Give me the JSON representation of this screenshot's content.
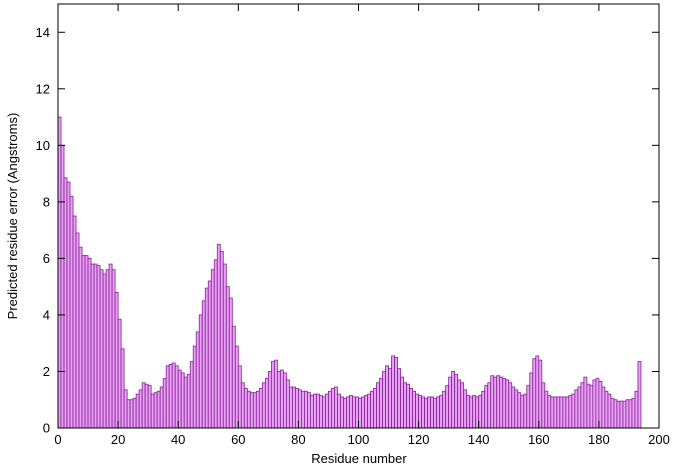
{
  "chart_data": {
    "type": "bar",
    "xlabel": "Residue number",
    "ylabel": "Predicted residue error (Angstroms)",
    "color": "#e6a3f2",
    "edge_color": "#8b1c9c",
    "xlim": [
      0,
      200
    ],
    "xticks": [
      0,
      20,
      40,
      60,
      80,
      100,
      120,
      140,
      160,
      180,
      200
    ],
    "ylim": [
      0,
      15
    ],
    "yticks": [
      0,
      2,
      4,
      6,
      8,
      10,
      12,
      14
    ],
    "grid": false,
    "x": [
      0,
      1,
      2,
      3,
      4,
      5,
      6,
      7,
      8,
      9,
      10,
      11,
      12,
      13,
      14,
      15,
      16,
      17,
      18,
      19,
      20,
      21,
      22,
      23,
      24,
      25,
      26,
      27,
      28,
      29,
      30,
      31,
      32,
      33,
      34,
      35,
      36,
      37,
      38,
      39,
      40,
      41,
      42,
      43,
      44,
      45,
      46,
      47,
      48,
      49,
      50,
      51,
      52,
      53,
      54,
      55,
      56,
      57,
      58,
      59,
      60,
      61,
      62,
      63,
      64,
      65,
      66,
      67,
      68,
      69,
      70,
      71,
      72,
      73,
      74,
      75,
      76,
      77,
      78,
      79,
      80,
      81,
      82,
      83,
      84,
      85,
      86,
      87,
      88,
      89,
      90,
      91,
      92,
      93,
      94,
      95,
      96,
      97,
      98,
      99,
      100,
      101,
      102,
      103,
      104,
      105,
      106,
      107,
      108,
      109,
      110,
      111,
      112,
      113,
      114,
      115,
      116,
      117,
      118,
      119,
      120,
      121,
      122,
      123,
      124,
      125,
      126,
      127,
      128,
      129,
      130,
      131,
      132,
      133,
      134,
      135,
      136,
      137,
      138,
      139,
      140,
      141,
      142,
      143,
      144,
      145,
      146,
      147,
      148,
      149,
      150,
      151,
      152,
      153,
      154,
      155,
      156,
      157,
      158,
      159,
      160,
      161,
      162,
      163,
      164,
      165,
      166,
      167,
      168,
      169,
      170,
      171,
      172,
      173,
      174,
      175,
      176,
      177,
      178,
      179,
      180,
      181,
      182,
      183,
      184,
      185,
      186,
      187,
      188,
      189,
      190,
      191,
      192,
      193
    ],
    "values": [
      11.0,
      10.0,
      8.85,
      8.7,
      8.2,
      7.5,
      6.9,
      6.4,
      6.1,
      6.1,
      6.0,
      5.8,
      5.8,
      5.75,
      5.6,
      5.45,
      5.6,
      5.8,
      5.6,
      4.8,
      3.85,
      2.8,
      1.35,
      1.0,
      1.0,
      1.05,
      1.2,
      1.35,
      1.6,
      1.55,
      1.5,
      1.2,
      1.25,
      1.3,
      1.45,
      1.75,
      2.2,
      2.25,
      2.3,
      2.2,
      2.05,
      1.95,
      1.8,
      1.9,
      2.35,
      2.9,
      3.4,
      4.0,
      4.5,
      4.95,
      5.2,
      5.6,
      5.95,
      6.5,
      6.25,
      5.8,
      5.0,
      4.6,
      3.6,
      2.9,
      2.2,
      1.6,
      1.4,
      1.3,
      1.25,
      1.25,
      1.3,
      1.4,
      1.6,
      1.75,
      2.0,
      2.35,
      2.4,
      2.0,
      2.05,
      1.95,
      1.7,
      1.45,
      1.45,
      1.4,
      1.35,
      1.3,
      1.3,
      1.25,
      1.15,
      1.2,
      1.2,
      1.15,
      1.1,
      1.2,
      1.3,
      1.4,
      1.45,
      1.2,
      1.1,
      1.05,
      1.1,
      1.15,
      1.1,
      1.1,
      1.05,
      1.1,
      1.15,
      1.2,
      1.3,
      1.4,
      1.6,
      1.75,
      2.0,
      2.2,
      2.1,
      2.55,
      2.5,
      2.1,
      1.8,
      1.6,
      1.55,
      1.4,
      1.3,
      1.2,
      1.15,
      1.1,
      1.05,
      1.1,
      1.1,
      1.05,
      1.1,
      1.15,
      1.3,
      1.5,
      1.8,
      2.0,
      1.9,
      1.7,
      1.6,
      1.35,
      1.15,
      1.1,
      1.15,
      1.1,
      1.15,
      1.3,
      1.5,
      1.6,
      1.85,
      1.8,
      1.85,
      1.8,
      1.75,
      1.7,
      1.6,
      1.45,
      1.35,
      1.25,
      1.15,
      1.2,
      1.5,
      1.95,
      2.45,
      2.55,
      2.4,
      1.6,
      1.3,
      1.15,
      1.1,
      1.1,
      1.1,
      1.1,
      1.1,
      1.1,
      1.15,
      1.2,
      1.35,
      1.45,
      1.6,
      1.8,
      1.55,
      1.5,
      1.7,
      1.75,
      1.65,
      1.45,
      1.3,
      1.2,
      1.05,
      1.0,
      0.95,
      0.95,
      0.95,
      1.0,
      1.0,
      1.05,
      1.3,
      2.35
    ]
  }
}
